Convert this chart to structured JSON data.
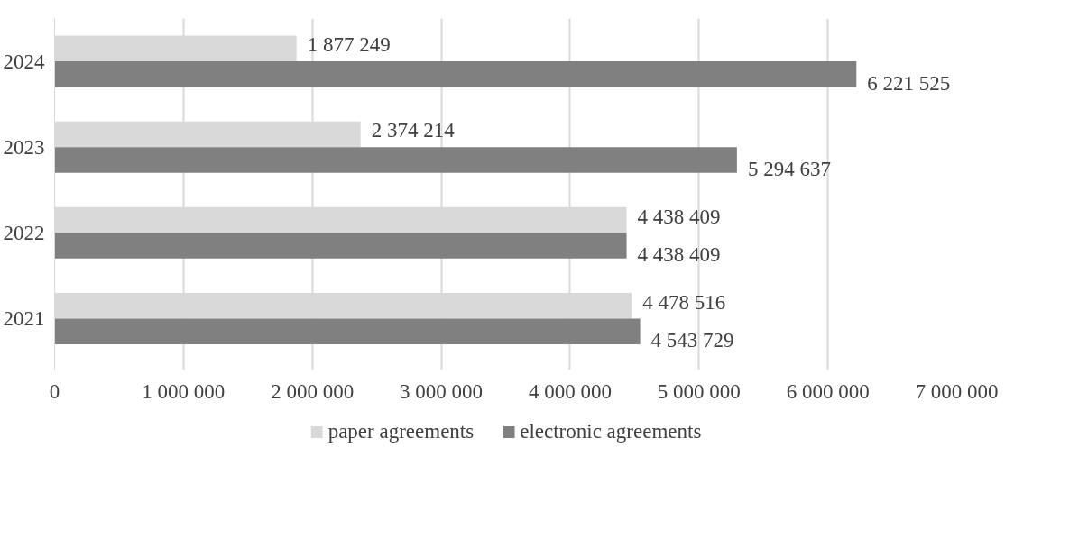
{
  "chart_data": {
    "type": "bar",
    "orientation": "horizontal",
    "categories": [
      "2024",
      "2023",
      "2022",
      "2021"
    ],
    "series": [
      {
        "name": "paper agreements",
        "color": "#d9d9d9",
        "values": [
          1877249,
          2374214,
          4438409,
          4478516
        ],
        "value_labels": [
          "1 877 249",
          "2 374 214",
          "4 438 409",
          "4 478 516"
        ]
      },
      {
        "name": "electronic agreements",
        "color": "#808080",
        "values": [
          6221525,
          5294637,
          4438409,
          4543729
        ],
        "value_labels": [
          "6 221 525",
          "5 294 637",
          "4 438 409",
          "4 543 729"
        ]
      }
    ],
    "xlim": [
      0,
      7000000
    ],
    "xticks": [
      {
        "value": 0,
        "label": "0"
      },
      {
        "value": 1000000,
        "label": "1 000 000"
      },
      {
        "value": 2000000,
        "label": "2 000 000"
      },
      {
        "value": 3000000,
        "label": "3 000 000"
      },
      {
        "value": 4000000,
        "label": "4 000 000"
      },
      {
        "value": 5000000,
        "label": "5 000 000"
      },
      {
        "value": 6000000,
        "label": "6 000 000"
      },
      {
        "value": 7000000,
        "label": "7 000 000"
      }
    ],
    "grid": "x",
    "legend": "bottom"
  }
}
